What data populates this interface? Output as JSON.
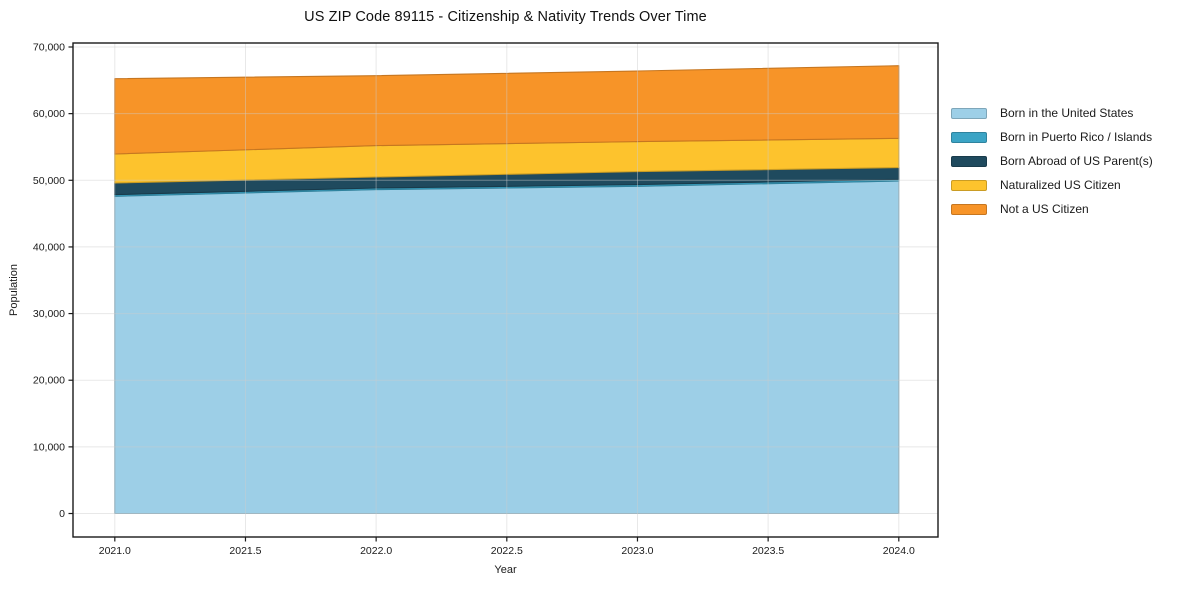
{
  "chart_data": {
    "type": "area",
    "stacked": true,
    "title": "US ZIP Code 89115 - Citizenship & Nativity Trends Over Time",
    "xlabel": "Year",
    "ylabel": "Population",
    "x": [
      2021,
      2022,
      2023,
      2024
    ],
    "series": [
      {
        "name": "Born in the United States",
        "color": "#9dcfe7",
        "values": [
          47600,
          48600,
          49100,
          49900
        ]
      },
      {
        "name": "Born in Puerto Rico / Islands",
        "color": "#3ba4c5",
        "values": [
          250,
          250,
          250,
          250
        ]
      },
      {
        "name": "Born Abroad of US Parent(s)",
        "color": "#1f4a5e",
        "values": [
          1750,
          1650,
          1950,
          1750
        ]
      },
      {
        "name": "Naturalized US Citizen",
        "color": "#fdc32d",
        "values": [
          4350,
          4700,
          4500,
          4400
        ]
      },
      {
        "name": "Not a US Citizen",
        "color": "#f79428",
        "values": [
          11300,
          10500,
          10600,
          10900
        ]
      }
    ],
    "totals": [
      65250,
      65700,
      66400,
      67200
    ],
    "xlim": [
      2020.84,
      2024.15
    ],
    "ylim": [
      -3525,
      70600
    ],
    "xtick_values": [
      2021.0,
      2021.5,
      2022.0,
      2022.5,
      2023.0,
      2023.5,
      2024.0
    ],
    "xtick_labels": [
      "2021.0",
      "2021.5",
      "2022.0",
      "2022.5",
      "2023.0",
      "2023.5",
      "2024.0"
    ],
    "ytick_values": [
      0,
      10000,
      20000,
      30000,
      40000,
      50000,
      60000,
      70000
    ],
    "ytick_labels": [
      "0",
      "10,000",
      "20,000",
      "30,000",
      "40,000",
      "50,000",
      "60,000",
      "70,000"
    ],
    "grid": true,
    "legend_position": "right-outside",
    "axis_color": "#1a1a1a",
    "grid_color": "#cccccc"
  }
}
